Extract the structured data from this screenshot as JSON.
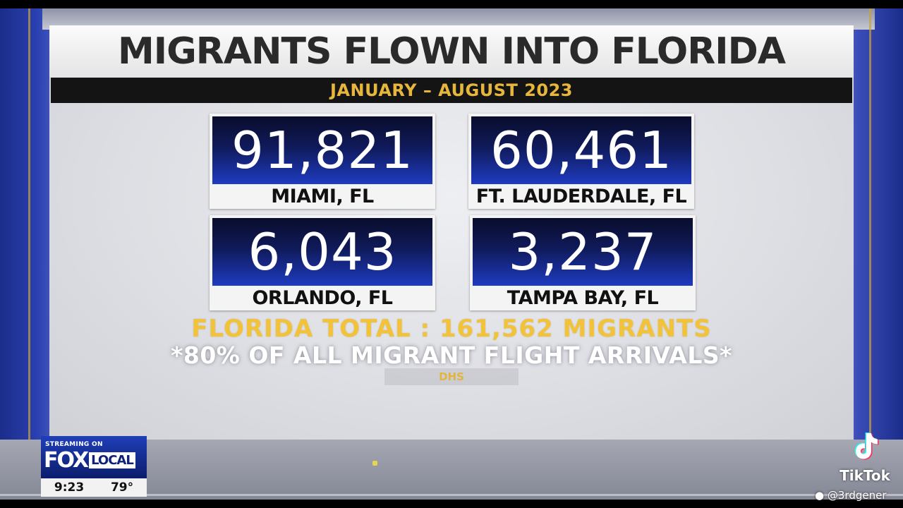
{
  "title": "MIGRANTS FLOWN INTO FLORIDA",
  "subtitle": "JANUARY – AUGUST 2023",
  "cards": [
    {
      "value": "91,821",
      "city": "MIAMI, FL"
    },
    {
      "value": "60,461",
      "city": "FT. LAUDERDALE, FL"
    },
    {
      "value": "6,043",
      "city": "ORLANDO, FL"
    },
    {
      "value": "3,237",
      "city": "TAMPA BAY, FL"
    }
  ],
  "total": "FLORIDA TOTAL : 161,562 MIGRANTS",
  "note": "*80% OF ALL MIGRANT FLIGHT ARRIVALS*",
  "source": "DHS",
  "bug": {
    "streaming": "STREAMING ON",
    "brand_fox": "FOX",
    "brand_local": "LOCAL",
    "time": "9:23",
    "temp": "79°"
  },
  "watermark": {
    "brand": "TikTok",
    "user": "@3rdgener"
  },
  "colors": {
    "accent_gold": "#f1c23a",
    "card_blue": "#1e3bc0",
    "fox_blue": "#1f3fb8"
  }
}
